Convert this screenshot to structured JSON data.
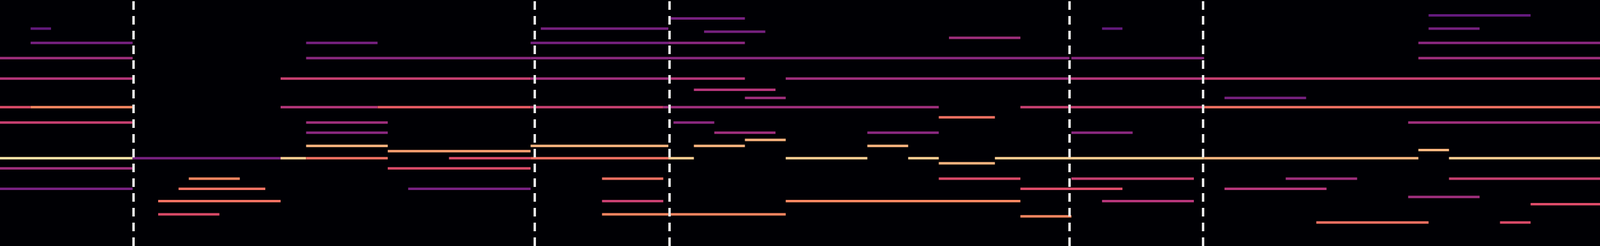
{
  "chart_data": {
    "type": "heatmap",
    "xlim": [
      0,
      1568
    ],
    "ylim": [
      0,
      241
    ],
    "tick_labels": false,
    "grid": false,
    "value_range": [
      0,
      1
    ],
    "vlines": [
      131,
      524,
      656,
      1048,
      1179
    ],
    "cells": [
      [
        0,
        130,
        86,
        0.95
      ],
      [
        130,
        275,
        86,
        0.35
      ],
      [
        275,
        300,
        86,
        0.9
      ],
      [
        300,
        380,
        98,
        0.85
      ],
      [
        300,
        380,
        86,
        0.7
      ],
      [
        380,
        520,
        93,
        0.8
      ],
      [
        440,
        520,
        86,
        0.6
      ],
      [
        520,
        655,
        98,
        0.85
      ],
      [
        520,
        655,
        86,
        0.7
      ],
      [
        655,
        680,
        86,
        0.9
      ],
      [
        680,
        730,
        98,
        0.85
      ],
      [
        730,
        770,
        104,
        0.85
      ],
      [
        770,
        850,
        86,
        0.9
      ],
      [
        850,
        890,
        98,
        0.85
      ],
      [
        890,
        920,
        86,
        0.9
      ],
      [
        920,
        975,
        81,
        0.85
      ],
      [
        975,
        1050,
        86,
        0.9
      ],
      [
        1050,
        1180,
        86,
        0.9
      ],
      [
        1180,
        1390,
        86,
        0.85
      ],
      [
        1390,
        1420,
        94,
        0.85
      ],
      [
        1420,
        1568,
        86,
        0.9
      ],
      [
        0,
        30,
        136,
        0.6
      ],
      [
        30,
        130,
        136,
        0.75
      ],
      [
        275,
        370,
        136,
        0.5
      ],
      [
        370,
        520,
        136,
        0.65
      ],
      [
        520,
        650,
        136,
        0.55
      ],
      [
        650,
        920,
        136,
        0.45
      ],
      [
        920,
        975,
        126,
        0.7
      ],
      [
        1000,
        1180,
        136,
        0.55
      ],
      [
        1180,
        1568,
        136,
        0.7
      ],
      [
        0,
        130,
        121,
        0.55
      ],
      [
        300,
        380,
        121,
        0.45
      ],
      [
        660,
        700,
        121,
        0.4
      ],
      [
        1380,
        1568,
        121,
        0.45
      ],
      [
        0,
        130,
        164,
        0.5
      ],
      [
        275,
        520,
        164,
        0.55
      ],
      [
        520,
        655,
        164,
        0.45
      ],
      [
        655,
        730,
        164,
        0.5
      ],
      [
        770,
        1048,
        164,
        0.45
      ],
      [
        1048,
        1180,
        164,
        0.5
      ],
      [
        1180,
        1568,
        164,
        0.55
      ],
      [
        0,
        130,
        184,
        0.45
      ],
      [
        300,
        520,
        184,
        0.4
      ],
      [
        520,
        655,
        184,
        0.4
      ],
      [
        655,
        1048,
        184,
        0.4
      ],
      [
        1050,
        1180,
        184,
        0.4
      ],
      [
        1390,
        1568,
        184,
        0.45
      ],
      [
        30,
        130,
        199,
        0.35
      ],
      [
        300,
        370,
        199,
        0.35
      ],
      [
        520,
        655,
        199,
        0.35
      ],
      [
        655,
        730,
        199,
        0.4
      ],
      [
        930,
        1000,
        204,
        0.45
      ],
      [
        1390,
        1568,
        199,
        0.4
      ],
      [
        30,
        50,
        213,
        0.3
      ],
      [
        530,
        655,
        213,
        0.35
      ],
      [
        690,
        750,
        210,
        0.35
      ],
      [
        1080,
        1100,
        213,
        0.3
      ],
      [
        1400,
        1450,
        213,
        0.35
      ],
      [
        655,
        730,
        223,
        0.35
      ],
      [
        1400,
        1500,
        226,
        0.3
      ],
      [
        300,
        380,
        111,
        0.4
      ],
      [
        700,
        760,
        111,
        0.45
      ],
      [
        850,
        920,
        111,
        0.4
      ],
      [
        1050,
        1110,
        111,
        0.4
      ],
      [
        680,
        760,
        153,
        0.5
      ],
      [
        730,
        770,
        145,
        0.45
      ],
      [
        1200,
        1280,
        145,
        0.35
      ],
      [
        185,
        235,
        66,
        0.75
      ],
      [
        175,
        260,
        56,
        0.7
      ],
      [
        155,
        275,
        44,
        0.7
      ],
      [
        155,
        215,
        31,
        0.6
      ],
      [
        0,
        130,
        76,
        0.45
      ],
      [
        0,
        130,
        56,
        0.35
      ],
      [
        380,
        520,
        76,
        0.6
      ],
      [
        400,
        520,
        56,
        0.35
      ],
      [
        590,
        650,
        66,
        0.7
      ],
      [
        590,
        770,
        31,
        0.75
      ],
      [
        590,
        650,
        44,
        0.55
      ],
      [
        770,
        1000,
        44,
        0.75
      ],
      [
        920,
        1000,
        66,
        0.6
      ],
      [
        1000,
        1050,
        29,
        0.75
      ],
      [
        1000,
        1100,
        56,
        0.6
      ],
      [
        1050,
        1170,
        66,
        0.55
      ],
      [
        1080,
        1170,
        44,
        0.5
      ],
      [
        1200,
        1300,
        56,
        0.5
      ],
      [
        1260,
        1330,
        66,
        0.45
      ],
      [
        1290,
        1400,
        23,
        0.7
      ],
      [
        1470,
        1500,
        23,
        0.6
      ],
      [
        1500,
        1568,
        41,
        0.6
      ],
      [
        1420,
        1568,
        66,
        0.55
      ],
      [
        1380,
        1450,
        48,
        0.45
      ]
    ]
  }
}
